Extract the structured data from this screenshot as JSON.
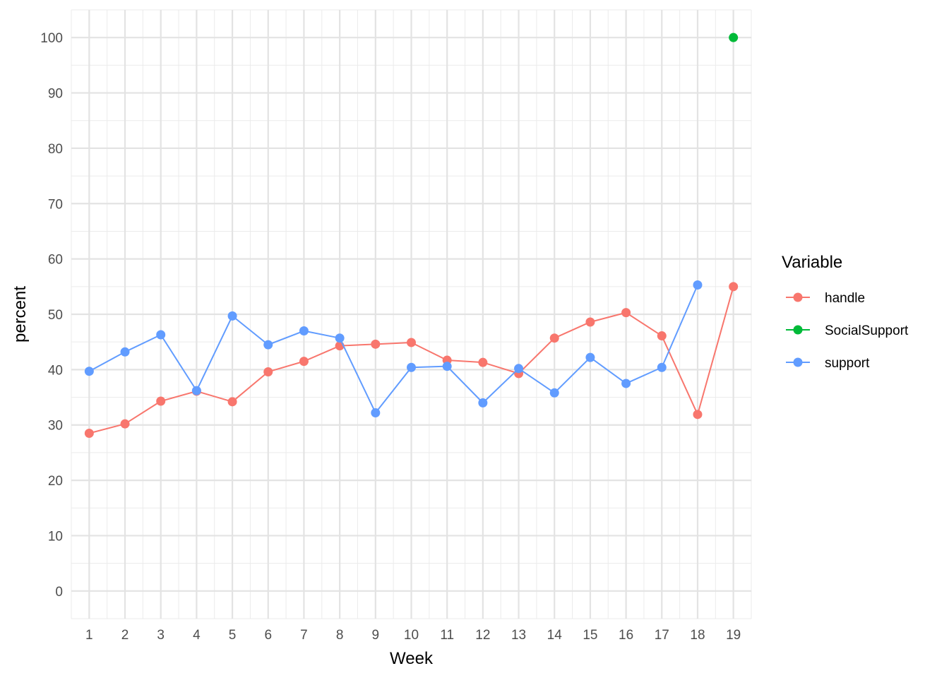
{
  "chart_data": {
    "type": "line",
    "title": "",
    "xlabel": "Week",
    "ylabel": "percent",
    "x": [
      1,
      2,
      3,
      4,
      5,
      6,
      7,
      8,
      9,
      10,
      11,
      12,
      13,
      14,
      15,
      16,
      17,
      18,
      19
    ],
    "xlim": [
      0.5,
      19.5
    ],
    "ylim": [
      -5,
      105
    ],
    "x_ticks": [
      1,
      2,
      3,
      4,
      5,
      6,
      7,
      8,
      9,
      10,
      11,
      12,
      13,
      14,
      15,
      16,
      17,
      18,
      19
    ],
    "y_ticks": [
      0,
      10,
      20,
      30,
      40,
      50,
      60,
      70,
      80,
      90,
      100
    ],
    "grid": true,
    "legend": {
      "title": "Variable",
      "position": "right"
    },
    "series": [
      {
        "name": "handle",
        "color": "#F8766D",
        "values": [
          28.5,
          30.2,
          34.3,
          36.1,
          34.2,
          39.6,
          41.5,
          44.3,
          44.6,
          44.9,
          41.7,
          41.3,
          39.3,
          45.7,
          48.6,
          50.3,
          46.1,
          31.9,
          55.0
        ]
      },
      {
        "name": "SocialSupport",
        "color": "#00BA38",
        "values": [
          null,
          null,
          null,
          null,
          null,
          null,
          null,
          null,
          null,
          null,
          null,
          null,
          null,
          null,
          null,
          null,
          null,
          null,
          100
        ]
      },
      {
        "name": "support",
        "color": "#619CFF",
        "values": [
          39.7,
          43.2,
          46.3,
          36.2,
          49.7,
          44.5,
          47.0,
          45.7,
          32.2,
          40.4,
          40.6,
          34.0,
          40.2,
          35.8,
          42.2,
          37.5,
          40.4,
          55.3,
          null
        ]
      }
    ]
  }
}
